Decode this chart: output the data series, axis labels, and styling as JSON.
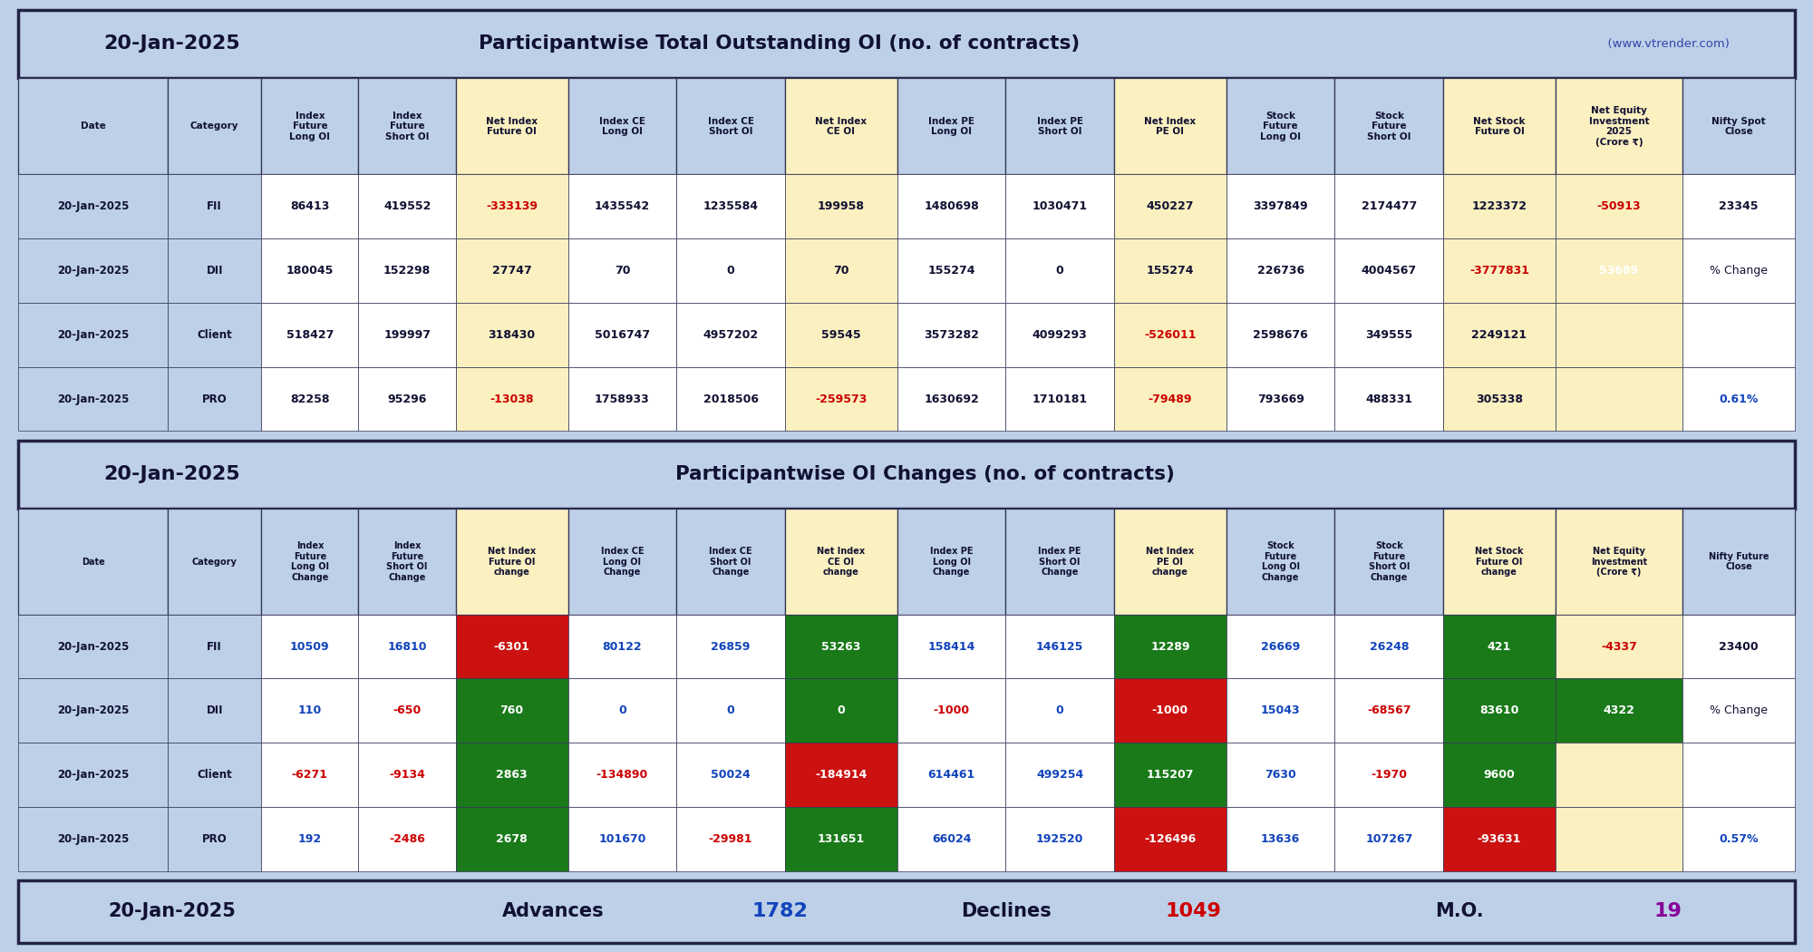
{
  "date": "20-Jan-2025",
  "website": "  (www.vtrender.com)",
  "title1": "Participantwise Total Outstanding OI (no. of contracts)",
  "title2": "Participantwise OI Changes (no. of contracts)",
  "footer_label": "20-Jan-2025",
  "footer_advances_label": "Advances",
  "footer_advances_val": "1782",
  "footer_declines_label": "Declines",
  "footer_declines_val": "1049",
  "footer_mo_label": "M.O.",
  "footer_mo_val": "19",
  "table1_headers": [
    "Date",
    "Category",
    "Index\nFuture\nLong OI",
    "Index\nFuture\nShort OI",
    "Net Index\nFuture OI",
    "Index CE\nLong OI",
    "Index CE\nShort OI",
    "Net Index\nCE OI",
    "Index PE\nLong OI",
    "Index PE\nShort OI",
    "Net Index\nPE OI",
    "Stock\nFuture\nLong OI",
    "Stock\nFuture\nShort OI",
    "Net Stock\nFuture OI",
    "Net Equity\nInvestment\n2025\n(Crore ₹)",
    "Nifty Spot\nClose"
  ],
  "table1_data": [
    [
      "20-Jan-2025",
      "FII",
      "86413",
      "419552",
      "-333139",
      "1435542",
      "1235584",
      "199958",
      "1480698",
      "1030471",
      "450227",
      "3397849",
      "2174477",
      "1223372",
      "-50913",
      "23345"
    ],
    [
      "20-Jan-2025",
      "DII",
      "180045",
      "152298",
      "27747",
      "70",
      "0",
      "70",
      "155274",
      "0",
      "155274",
      "226736",
      "4004567",
      "-3777831",
      "53689",
      ""
    ],
    [
      "20-Jan-2025",
      "Client",
      "518427",
      "199997",
      "318430",
      "5016747",
      "4957202",
      "59545",
      "3573282",
      "4099293",
      "-526011",
      "2598676",
      "349555",
      "2249121",
      "",
      ""
    ],
    [
      "20-Jan-2025",
      "PRO",
      "82258",
      "95296",
      "-13038",
      "1758933",
      "2018506",
      "-259573",
      "1630692",
      "1710181",
      "-79489",
      "793669",
      "488331",
      "305338",
      "",
      ""
    ]
  ],
  "table2_headers": [
    "Date",
    "Category",
    "Index\nFuture\nLong OI\nChange",
    "Index\nFuture\nShort OI\nChange",
    "Net Index\nFuture OI\nchange",
    "Index CE\nLong OI\nChange",
    "Index CE\nShort OI\nChange",
    "Net Index\nCE OI\nchange",
    "Index PE\nLong OI\nChange",
    "Index PE\nShort OI\nChange",
    "Net Index\nPE OI\nchange",
    "Stock\nFuture\nLong OI\nChange",
    "Stock\nFuture\nShort OI\nChange",
    "Net Stock\nFuture OI\nchange",
    "Net Equity\nInvestment\n(Crore ₹)",
    "Nifty Future\nClose"
  ],
  "table2_data": [
    [
      "20-Jan-2025",
      "FII",
      "10509",
      "16810",
      "-6301",
      "80122",
      "26859",
      "53263",
      "158414",
      "146125",
      "12289",
      "26669",
      "26248",
      "421",
      "-4337",
      "23400"
    ],
    [
      "20-Jan-2025",
      "DII",
      "110",
      "-650",
      "760",
      "0",
      "0",
      "0",
      "-1000",
      "0",
      "-1000",
      "15043",
      "-68567",
      "83610",
      "4322",
      ""
    ],
    [
      "20-Jan-2025",
      "Client",
      "-6271",
      "-9134",
      "2863",
      "-134890",
      "50024",
      "-184914",
      "614461",
      "499254",
      "115207",
      "7630",
      "-1970",
      "9600",
      "",
      ""
    ],
    [
      "20-Jan-2025",
      "PRO",
      "192",
      "-2486",
      "2678",
      "101670",
      "-29981",
      "131651",
      "66024",
      "192520",
      "-126496",
      "13636",
      "107267",
      "-93631",
      "",
      ""
    ]
  ],
  "net_cols": [
    4,
    7,
    10,
    13
  ],
  "net_equity_col": 14,
  "nifty_col": 15,
  "bg_color": "#BDD0E8",
  "header_bg": "#BDD0E8",
  "net_col_bg": "#FAF0C0",
  "white_bg": "#FFFFFF",
  "neg_red": "#CC0000",
  "green_bg": "#1A7A1A",
  "red_bg": "#CC1111",
  "blue_text": "#1144BB",
  "purple_text": "#880099"
}
